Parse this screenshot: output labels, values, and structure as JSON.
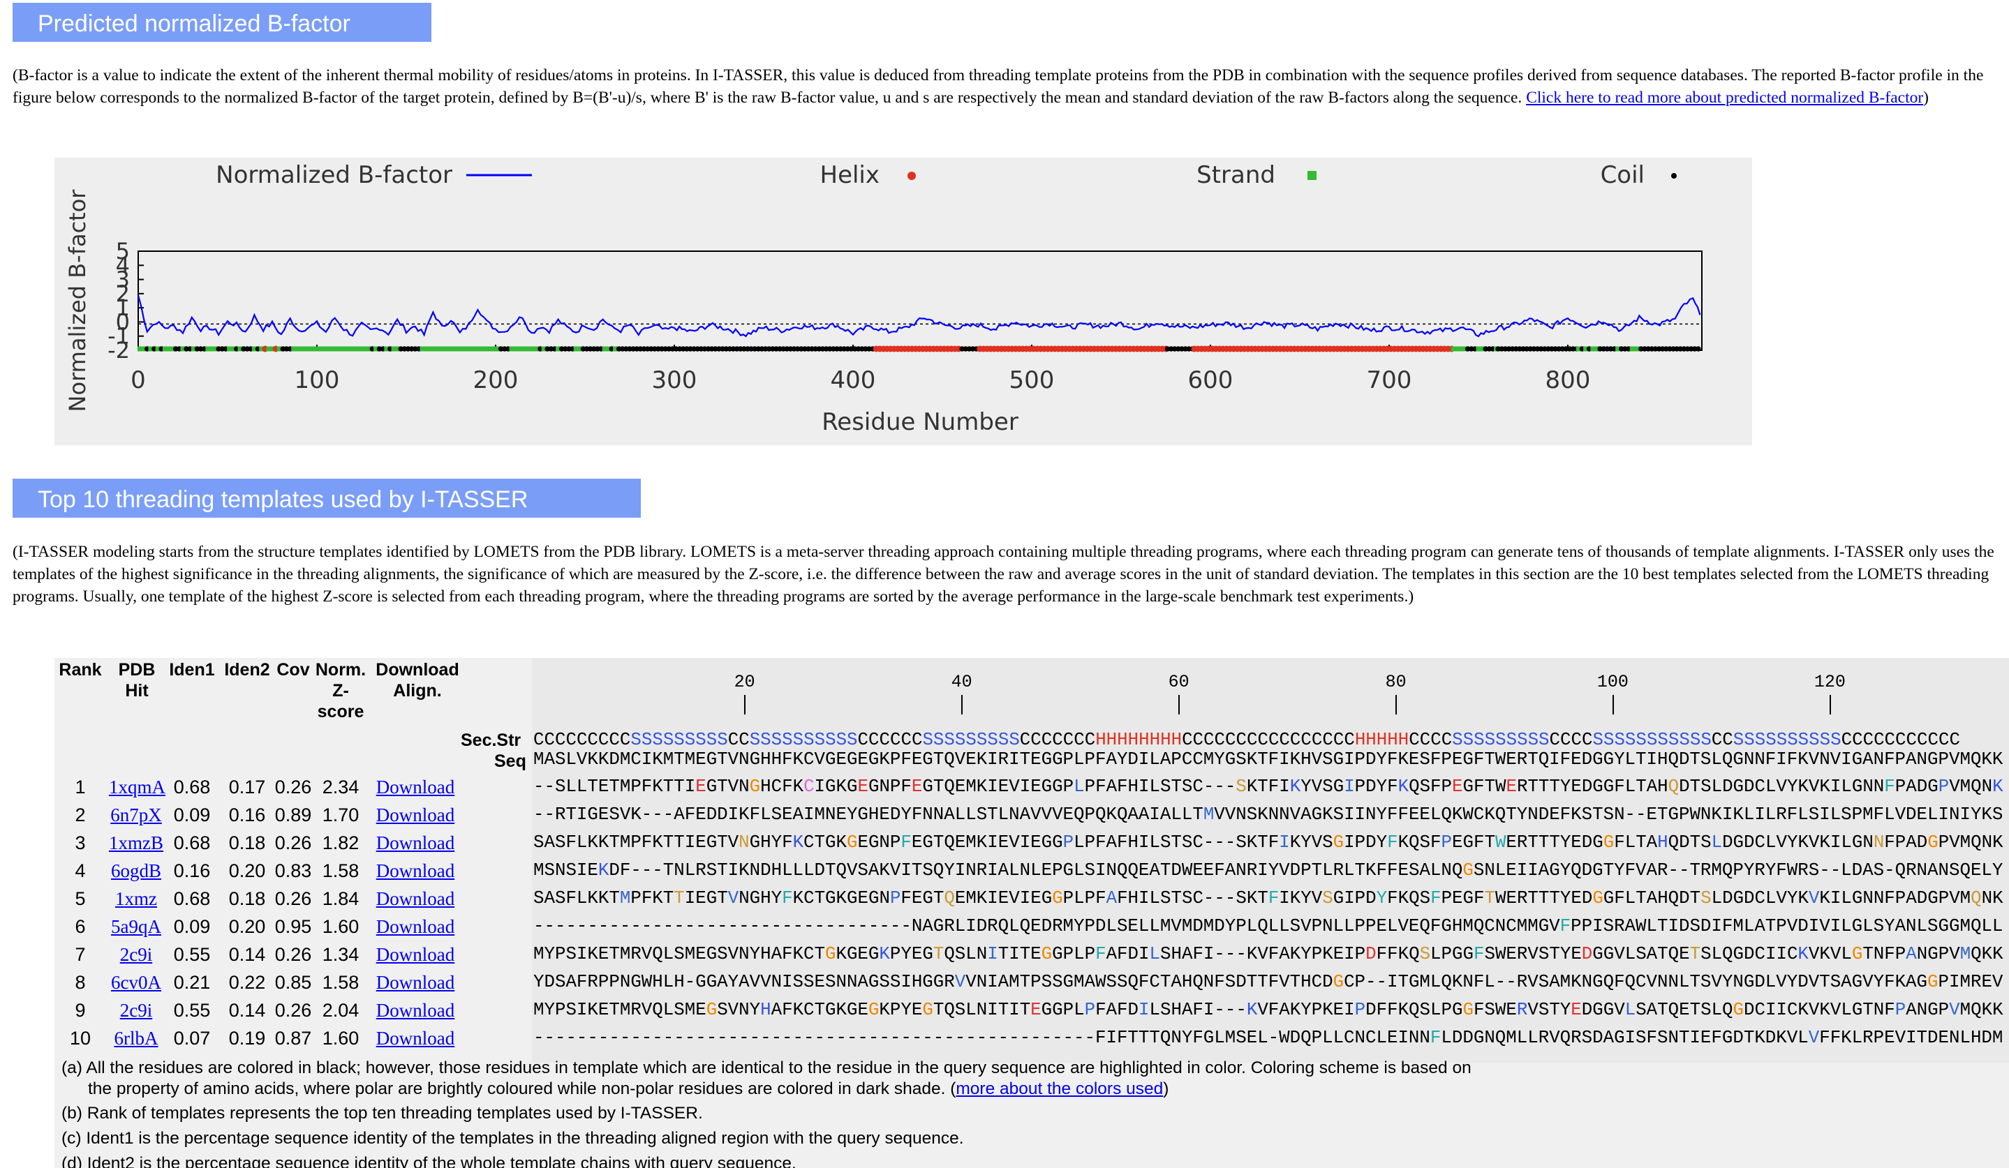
{
  "section1": {
    "title": "Predicted normalized B-factor",
    "paragraph": "(B-factor is a value to indicate the extent of the inherent thermal mobility of residues/atoms in proteins. In I-TASSER, this value is deduced from threading template proteins from the PDB in combination with the sequence profiles derived from sequence databases. The reported B-factor profile in the figure below corresponds to the normalized B-factor of the target protein, defined by B=(B'-u)/s, where B' is the raw B-factor value, u and s are respectively the mean and standard deviation of the raw B-factors along the sequence. ",
    "link": "Click here to read more about predicted normalized B-factor",
    "paragraph_end": ")"
  },
  "chart_data": {
    "type": "line",
    "xlabel": "Residue Number",
    "ylabel": "Normalized B-factor",
    "xlim": [
      0,
      875
    ],
    "ylim": [
      -2,
      5
    ],
    "xticks": [
      0,
      100,
      200,
      300,
      400,
      500,
      600,
      700,
      800
    ],
    "yticks": [
      -2,
      -1,
      0,
      1,
      2,
      3,
      4,
      5
    ],
    "legend": [
      {
        "label": "Normalized B-factor",
        "color": "#0000ff",
        "marker": "line"
      },
      {
        "label": "Helix",
        "color": "#e03020",
        "marker": "dot"
      },
      {
        "label": "Strand",
        "color": "#33bb33",
        "marker": "square"
      },
      {
        "label": "Coil",
        "color": "#000000",
        "marker": "dot"
      }
    ],
    "series": [
      {
        "name": "Normalized B-factor",
        "x": [
          0,
          5,
          10,
          15,
          20,
          25,
          30,
          35,
          40,
          45,
          50,
          55,
          60,
          65,
          70,
          75,
          80,
          85,
          90,
          95,
          100,
          105,
          110,
          115,
          120,
          125,
          130,
          135,
          140,
          145,
          150,
          155,
          160,
          165,
          170,
          175,
          180,
          185,
          190,
          195,
          200,
          205,
          210,
          215,
          220,
          225,
          230,
          235,
          240,
          245,
          250,
          255,
          260,
          265,
          270,
          275,
          280,
          285,
          290,
          295,
          300,
          310,
          320,
          330,
          340,
          350,
          360,
          370,
          380,
          390,
          400,
          410,
          420,
          430,
          440,
          450,
          460,
          470,
          480,
          490,
          500,
          510,
          520,
          530,
          540,
          550,
          560,
          570,
          580,
          590,
          600,
          610,
          620,
          630,
          640,
          650,
          660,
          670,
          680,
          690,
          700,
          710,
          720,
          730,
          740,
          750,
          760,
          770,
          780,
          790,
          800,
          810,
          820,
          830,
          840,
          850,
          860,
          865,
          870,
          874
        ],
        "y": [
          1.9,
          -0.6,
          0.0,
          -0.4,
          -0.3,
          -0.7,
          0.3,
          -0.5,
          -0.4,
          -0.8,
          0.0,
          -0.2,
          -0.7,
          0.4,
          -0.5,
          -0.1,
          -0.9,
          0.2,
          -0.6,
          -0.4,
          -0.1,
          -0.7,
          0.3,
          -0.5,
          -0.9,
          -0.2,
          -0.6,
          -0.4,
          -0.8,
          0.1,
          -0.6,
          -0.3,
          -0.9,
          0.7,
          -0.4,
          0.2,
          -0.8,
          -0.2,
          1.0,
          0.0,
          -0.5,
          -0.7,
          -0.1,
          0.4,
          -0.8,
          -0.3,
          -0.6,
          0.1,
          -0.4,
          -0.7,
          -0.2,
          -0.5,
          0.2,
          -0.4,
          -0.6,
          -0.2,
          -0.9,
          -0.4,
          -0.3,
          -0.6,
          -0.4,
          -0.7,
          -0.2,
          -0.5,
          -0.9,
          -0.4,
          -0.6,
          -0.3,
          -0.4,
          -0.2,
          -0.8,
          -0.3,
          -0.7,
          -0.4,
          0.3,
          -0.2,
          -0.4,
          -0.2,
          -0.5,
          0.0,
          -0.3,
          -0.1,
          -0.4,
          -0.2,
          -0.3,
          -0.1,
          -0.5,
          0.0,
          -0.3,
          -0.4,
          -0.2,
          -0.1,
          -0.4,
          0.0,
          -0.3,
          -0.2,
          -0.5,
          -0.1,
          -0.3,
          -0.6,
          -0.4,
          -0.5,
          -0.7,
          -0.6,
          -0.4,
          -0.9,
          -0.5,
          -0.2,
          0.2,
          -0.4,
          0.3,
          -0.3,
          0.1,
          -0.6,
          0.3,
          -0.2,
          0.2,
          1.2,
          1.6,
          0.5
        ]
      }
    ],
    "secondary_structure": [
      {
        "start": 1,
        "end": 50,
        "type": "mixed-strand"
      },
      {
        "start": 51,
        "end": 90,
        "type": "mixed-helix"
      },
      {
        "start": 91,
        "end": 130,
        "type": "strand"
      },
      {
        "start": 131,
        "end": 160,
        "type": "mixed-strand"
      },
      {
        "start": 161,
        "end": 200,
        "type": "strand"
      },
      {
        "start": 201,
        "end": 230,
        "type": "mixed-strand"
      },
      {
        "start": 231,
        "end": 270,
        "type": "mixed"
      },
      {
        "start": 271,
        "end": 412,
        "type": "coil"
      },
      {
        "start": 413,
        "end": 460,
        "type": "helix"
      },
      {
        "start": 461,
        "end": 470,
        "type": "coil"
      },
      {
        "start": 471,
        "end": 575,
        "type": "helix"
      },
      {
        "start": 576,
        "end": 590,
        "type": "coil"
      },
      {
        "start": 591,
        "end": 735,
        "type": "helix"
      },
      {
        "start": 736,
        "end": 760,
        "type": "mixed-strand"
      },
      {
        "start": 761,
        "end": 805,
        "type": "coil"
      },
      {
        "start": 806,
        "end": 840,
        "type": "mixed-strand"
      },
      {
        "start": 841,
        "end": 874,
        "type": "coil"
      }
    ]
  },
  "section2": {
    "title": "Top 10 threading templates used by I-TASSER",
    "paragraph": "(I-TASSER modeling starts from the structure templates identified by LOMETS from the PDB library. LOMETS is a meta-server threading approach containing multiple threading programs, where each threading program can generate tens of thousands of template alignments. I-TASSER only uses the templates of the highest significance in the threading alignments, the significance of which are measured by the Z-score, i.e. the difference between the raw and average scores in the unit of standard deviation. The templates in this section are the 10 best templates selected from the LOMETS threading programs. Usually, one template of the highest Z-score is selected from each threading program, where the threading programs are sorted by the average performance in the large-scale benchmark test experiments.)"
  },
  "table": {
    "headers": {
      "rank": "Rank",
      "pdb": "PDB Hit",
      "iden1": "Iden1",
      "iden2": "Iden2",
      "cov": "Cov",
      "norm": "Norm. Z-score",
      "download": "Download Align."
    },
    "ruler": [
      "20",
      "40",
      "60",
      "80",
      "100",
      "120"
    ],
    "secstr_label": "Sec.Str",
    "seq_label": "Seq",
    "secstr": "CCCCCCCCCSSSSSSSSSCCSSSSSSSSSSCCCCCCSSSSSSSSSCCCCCCCHHHHHHHHCCCCCCCCCCCCCCCCHHHHHCCCCSSSSSSSSSCCCCSSSSSSSSSSSCCSSSSSSSSSSCCCCCCCCCCC",
    "seq": "MASLVKKDMCIKMTMEGTVNGHHFKCVGEGEGKPFEGTQVEKIRITEGGPLPFAYDILAPCCMYGSKTFIKHVSGIPDYFKESFPEGFTWERTQIFEDGGYLTIHQDTSLQGNNFIFKVNVIGANFPANGPVMQKK",
    "rows": [
      {
        "rank": "1",
        "pdb": "1xqmA",
        "iden1": "0.68",
        "iden2": "0.17",
        "cov": "0.26",
        "z": "2.34",
        "dl": "Download",
        "aln": "--SLLTETMPFKTTIEGTVNGHCFKCIGKGEGNPFEGTQEMKIEVIEGGPLPFAFHILSTSC---SKTFIKYVSGIPDYFKQSFPEGFTWERTTTYEDGGFLTAHQDTSLDGDCLVYKVKILGNNFPADGPVMQNK"
      },
      {
        "rank": "2",
        "pdb": "6n7pX",
        "iden1": "0.09",
        "iden2": "0.16",
        "cov": "0.89",
        "z": "1.70",
        "dl": "Download",
        "aln": "--RTIGESVK---AFEDDIKFLSEAIMNEYGHEDYFNNALLSTLNAVVVEQPQKQAAIALLTMVVNSKNNVAGKSIINYFFEELQKWCKQTYNDEFKSTSN--ETGPWNKIKLILRFLSILSPMFLVDELINIYKS"
      },
      {
        "rank": "3",
        "pdb": "1xmzB",
        "iden1": "0.68",
        "iden2": "0.18",
        "cov": "0.26",
        "z": "1.82",
        "dl": "Download",
        "aln": "SASFLKKTMPFKTTIEGTVNGHYFKCTGKGEGNPFEGTQEMKIEVIEGGPLPFAFHILSTSC---SKTFIKYVSGIPDYFKQSFPEGFTWERTTTYEDGGFLTAHQDTSLDGDCLVYKVKILGNNFPADGPVMQNK"
      },
      {
        "rank": "4",
        "pdb": "6ogdB",
        "iden1": "0.16",
        "iden2": "0.20",
        "cov": "0.83",
        "z": "1.58",
        "dl": "Download",
        "aln": "MSNSIEKDF---TNLRSTIKNDHLLLDTQVSAKVITSQYINRIALNLEPGLSINQQEATDWEEFANRIYVDPTLRLTKFFESALNQGSNLEIIAGYQDGTYFVAR--TRMQPYRYFWRS--LDAS-QRNANSQELY"
      },
      {
        "rank": "5",
        "pdb": "1xmz",
        "iden1": "0.68",
        "iden2": "0.18",
        "cov": "0.26",
        "z": "1.84",
        "dl": "Download",
        "aln": "SASFLKKTMPFKTTIEGTVNGHYFKCTGKGEGNPFEGTQEMKIEVIEGGPLPFAFHILSTSC---SKTFIKYVSGIPDYFKQSFPEGFTWERTTTYEDGGFLTAHQDTSLDGDCLVYKVKILGNNFPADGPVMQNK"
      },
      {
        "rank": "6",
        "pdb": "5a9qA",
        "iden1": "0.09",
        "iden2": "0.20",
        "cov": "0.95",
        "z": "1.60",
        "dl": "Download",
        "aln": "-----------------------------------NAGRLIDRQLQEDRMYPDLSELLMVMDMDYPLQLLSVPNLLPPELVEQFGHMQCNCMMGVFPPISRAWLTIDSDIFMLATPVDIVILGLSYANLSGGMQLL"
      },
      {
        "rank": "7",
        "pdb": "2c9i",
        "iden1": "0.55",
        "iden2": "0.14",
        "cov": "0.26",
        "z": "1.34",
        "dl": "Download",
        "aln": "MYPSIKETMRVQLSMEGSVNYHAFKCTGKGEGKPYEGTQSLNITITEGGPLPFAFDILSHAFI---KVFAKYPKEIPDFFKQSLPGGFSWERVSTYEDGGVLSATQETSLQGDCIICKVKVLGTNFPANGPVMQKK"
      },
      {
        "rank": "8",
        "pdb": "6cv0A",
        "iden1": "0.21",
        "iden2": "0.22",
        "cov": "0.85",
        "z": "1.58",
        "dl": "Download",
        "aln": "YDSAFRPPNGWHLH-GGAYAVVNISSESNNAGSSIHGGRVVNIAMTPSSGMAWSSQFCTAHQNFSDTTFVTHCDGCP--ITGMLQKNFL--RVSAMKNGQFQCVNNLTSVYNGDLVYDVTSAGVYFKAGGPIMREV"
      },
      {
        "rank": "9",
        "pdb": "2c9i",
        "iden1": "0.55",
        "iden2": "0.14",
        "cov": "0.26",
        "z": "2.04",
        "dl": "Download",
        "aln": "MYPSIKETMRVQLSMEGSVNYHAFKCTGKGEGKPYEGTQSLNITITEGGPLPFAFDILSHAFI---KVFAKYPKEIPDFFKQSLPGGFSWERVSTYEDGGVLSATQETSLQGDCIICKVKVLGTNFPANGPVMQKK"
      },
      {
        "rank": "10",
        "pdb": "6rlbA",
        "iden1": "0.07",
        "iden2": "0.19",
        "cov": "0.87",
        "z": "1.60",
        "dl": "Download",
        "aln": "----------------------------------------------------FIFTTTQNYFGLMSEL-WDQPLLCNCLEINNFLDDGNQMLLRVQRSDAGISFSNTIEFGDTKDKVLVFFKLRPEVITDENLHDM"
      }
    ]
  },
  "notes": {
    "a": "(a) All the residues are colored in black; however, those residues in template which are identical to the residue in the query sequence are highlighted in color. Coloring scheme is based on",
    "a2": "the property of amino acids, where polar are brightly coloured while non-polar residues are colored in dark shade. (",
    "a_link": "more about the colors used",
    "a_end": ")",
    "b": "(b) Rank of templates represents the top ten threading templates used by I-TASSER.",
    "c": "(c) Ident1 is the percentage sequence identity of the templates in the threading aligned region with the query sequence.",
    "d": "(d) Ident2 is the percentage sequence identity of the whole template chains with query sequence."
  },
  "colors": {
    "header_bg": "#7a9ef7",
    "link": "#0000ee",
    "helix": "#e03020",
    "strand": "#3355dd",
    "line": "#0000ff",
    "strand_marker": "#33bb33"
  }
}
